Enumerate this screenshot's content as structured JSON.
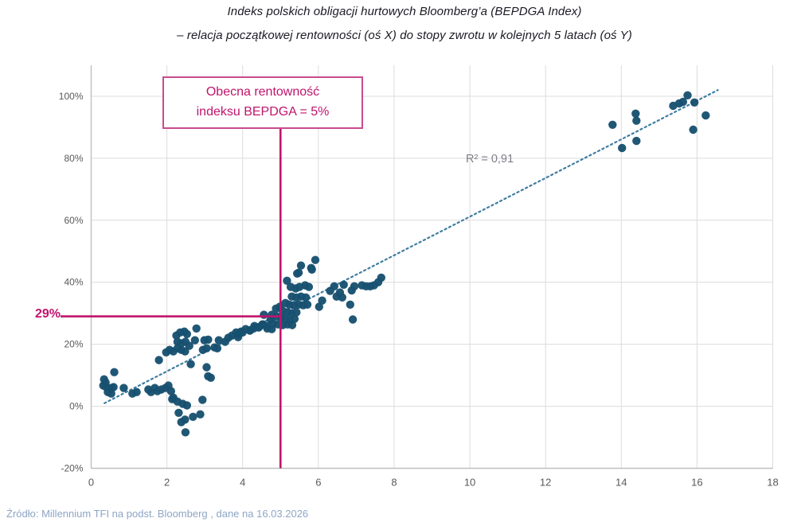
{
  "title": {
    "line1": "Indeks polskich obligacji hurtowych Bloomberg’a (BEPDGA Index)",
    "line2": "– relacja początkowej rentowności (oś X) do stopy zwrotu w kolejnych 5 latach (oś Y)"
  },
  "annotation_box": {
    "line1": "Obecna rentowność",
    "line2": "indeksu BEPDGA = 5%"
  },
  "labels": {
    "current_return": "29%",
    "r_squared": "R² = 0,91"
  },
  "source": "Źródło: Millennium TFI na podst. Bloomberg , dane na 16.03.2026",
  "colors": {
    "accent_pink": "#c0146c",
    "point_fill": "#17506f",
    "trend_line": "#3f7da2",
    "grid": "#dcdcdc",
    "axis": "#bfbfbf",
    "tick_text": "#595959",
    "title_text": "#1a1a24",
    "r2_text": "#7e7e88",
    "source_text": "#8ea5c6"
  },
  "chart_data": {
    "type": "scatter",
    "title": "Indeks polskich obligacji hurtowych Bloomberg’a (BEPDGA Index) – relacja początkowej rentowności (oś X) do stopy zwrotu w kolejnych 5 latach (oś Y)",
    "xlabel": "",
    "ylabel": "",
    "xlim": [
      0,
      18
    ],
    "ylim": [
      -20,
      110
    ],
    "x_ticks": [
      0,
      2,
      4,
      6,
      8,
      10,
      12,
      14,
      16,
      18
    ],
    "y_ticks": [
      -20,
      0,
      20,
      40,
      60,
      80,
      100
    ],
    "y_tick_suffix": "%",
    "grid": true,
    "legend": "none",
    "r_squared": 0.91,
    "trendline": {
      "style": "dotted",
      "x_start": 0.35,
      "y_start": 1.0,
      "x_end": 16.55,
      "y_end": 102.0
    },
    "reference": {
      "vertical_x": 5,
      "horizontal_y": 29
    },
    "points": [
      [
        0.32,
        6.7
      ],
      [
        0.34,
        8.7
      ],
      [
        0.38,
        7.7
      ],
      [
        0.4,
        6.2
      ],
      [
        0.44,
        4.6
      ],
      [
        0.53,
        5.9
      ],
      [
        0.53,
        4.1
      ],
      [
        0.59,
        6.2
      ],
      [
        0.61,
        11.0
      ],
      [
        0.86,
        5.9
      ],
      [
        1.09,
        4.1
      ],
      [
        1.2,
        4.6
      ],
      [
        1.51,
        5.4
      ],
      [
        1.58,
        4.6
      ],
      [
        1.68,
        5.9
      ],
      [
        1.75,
        4.9
      ],
      [
        1.85,
        5.4
      ],
      [
        1.96,
        5.9
      ],
      [
        2.04,
        6.7
      ],
      [
        2.11,
        4.9
      ],
      [
        2.14,
        2.3
      ],
      [
        2.17,
        2.8
      ],
      [
        2.28,
        1.5
      ],
      [
        2.42,
        0.8
      ],
      [
        2.53,
        0.3
      ],
      [
        2.31,
        -2.1
      ],
      [
        2.38,
        -5.1
      ],
      [
        2.48,
        -4.3
      ],
      [
        2.49,
        -8.4
      ],
      [
        2.69,
        -3.4
      ],
      [
        2.88,
        -2.6
      ],
      [
        2.94,
        2.1
      ],
      [
        1.79,
        14.9
      ],
      [
        1.98,
        17.4
      ],
      [
        2.07,
        18.2
      ],
      [
        2.17,
        17.7
      ],
      [
        2.28,
        18.7
      ],
      [
        2.38,
        18.2
      ],
      [
        2.48,
        17.7
      ],
      [
        2.28,
        20.8
      ],
      [
        2.38,
        20.3
      ],
      [
        2.49,
        20.8
      ],
      [
        2.25,
        22.8
      ],
      [
        2.35,
        23.8
      ],
      [
        2.46,
        24.1
      ],
      [
        2.53,
        23.3
      ],
      [
        2.59,
        19.5
      ],
      [
        2.74,
        21.3
      ],
      [
        2.78,
        25.1
      ],
      [
        2.63,
        13.6
      ],
      [
        3.05,
        12.6
      ],
      [
        3.09,
        9.7
      ],
      [
        3.16,
        9.2
      ],
      [
        2.95,
        18.2
      ],
      [
        2.99,
        21.3
      ],
      [
        3.05,
        18.7
      ],
      [
        3.09,
        21.5
      ],
      [
        3.26,
        19.0
      ],
      [
        3.33,
        18.7
      ],
      [
        3.37,
        21.3
      ],
      [
        3.54,
        20.8
      ],
      [
        3.62,
        22.1
      ],
      [
        3.72,
        22.8
      ],
      [
        3.83,
        23.8
      ],
      [
        3.89,
        23.3
      ],
      [
        3.96,
        24.1
      ],
      [
        3.88,
        22.3
      ],
      [
        3.92,
        23.6
      ],
      [
        4.0,
        23.8
      ],
      [
        4.08,
        24.9
      ],
      [
        4.19,
        24.4
      ],
      [
        4.21,
        24.6
      ],
      [
        4.29,
        25.1
      ],
      [
        4.31,
        25.9
      ],
      [
        4.42,
        25.4
      ],
      [
        4.44,
        25.6
      ],
      [
        4.52,
        26.4
      ],
      [
        4.54,
        26.4
      ],
      [
        4.56,
        29.5
      ],
      [
        4.63,
        25.9
      ],
      [
        4.65,
        25.1
      ],
      [
        4.74,
        28.0
      ],
      [
        4.77,
        24.9
      ],
      [
        4.77,
        29.5
      ],
      [
        4.8,
        26.7
      ],
      [
        4.88,
        31.5
      ],
      [
        4.9,
        29.0
      ],
      [
        4.94,
        26.4
      ],
      [
        4.98,
        32.1
      ],
      [
        5.02,
        28.7
      ],
      [
        5.06,
        26.2
      ],
      [
        5.06,
        30.8
      ],
      [
        5.13,
        28.2
      ],
      [
        5.13,
        33.3
      ],
      [
        5.17,
        40.5
      ],
      [
        5.19,
        26.4
      ],
      [
        5.19,
        30.3
      ],
      [
        5.23,
        32.8
      ],
      [
        5.25,
        27.7
      ],
      [
        5.27,
        38.5
      ],
      [
        5.29,
        30.0
      ],
      [
        5.3,
        35.4
      ],
      [
        5.31,
        26.2
      ],
      [
        5.35,
        32.6
      ],
      [
        5.37,
        28.2
      ],
      [
        5.4,
        38.0
      ],
      [
        5.42,
        30.3
      ],
      [
        5.42,
        35.1
      ],
      [
        5.44,
        42.8
      ],
      [
        5.48,
        32.8
      ],
      [
        5.48,
        43.1
      ],
      [
        5.5,
        38.5
      ],
      [
        5.54,
        35.4
      ],
      [
        5.54,
        45.4
      ],
      [
        5.6,
        32.6
      ],
      [
        5.65,
        39.0
      ],
      [
        5.67,
        35.1
      ],
      [
        5.71,
        32.8
      ],
      [
        5.75,
        38.5
      ],
      [
        5.81,
        44.6
      ],
      [
        5.83,
        44.1
      ],
      [
        5.92,
        47.2
      ],
      [
        6.02,
        32.1
      ],
      [
        6.1,
        34.1
      ],
      [
        6.31,
        37.2
      ],
      [
        6.42,
        38.7
      ],
      [
        6.48,
        35.4
      ],
      [
        6.57,
        36.7
      ],
      [
        6.63,
        35.1
      ],
      [
        6.67,
        39.2
      ],
      [
        6.84,
        32.8
      ],
      [
        6.88,
        37.4
      ],
      [
        6.91,
        28.0
      ],
      [
        6.95,
        38.7
      ],
      [
        7.15,
        39.0
      ],
      [
        7.26,
        38.7
      ],
      [
        7.37,
        38.7
      ],
      [
        7.47,
        39.0
      ],
      [
        7.58,
        40.0
      ],
      [
        7.66,
        41.5
      ],
      [
        13.77,
        90.8
      ],
      [
        14.02,
        83.3
      ],
      [
        14.38,
        94.4
      ],
      [
        14.4,
        92.1
      ],
      [
        14.4,
        85.6
      ],
      [
        15.37,
        96.9
      ],
      [
        15.53,
        97.7
      ],
      [
        15.63,
        98.2
      ],
      [
        15.75,
        100.3
      ],
      [
        15.93,
        98.0
      ],
      [
        15.9,
        89.2
      ],
      [
        16.23,
        93.8
      ]
    ]
  }
}
